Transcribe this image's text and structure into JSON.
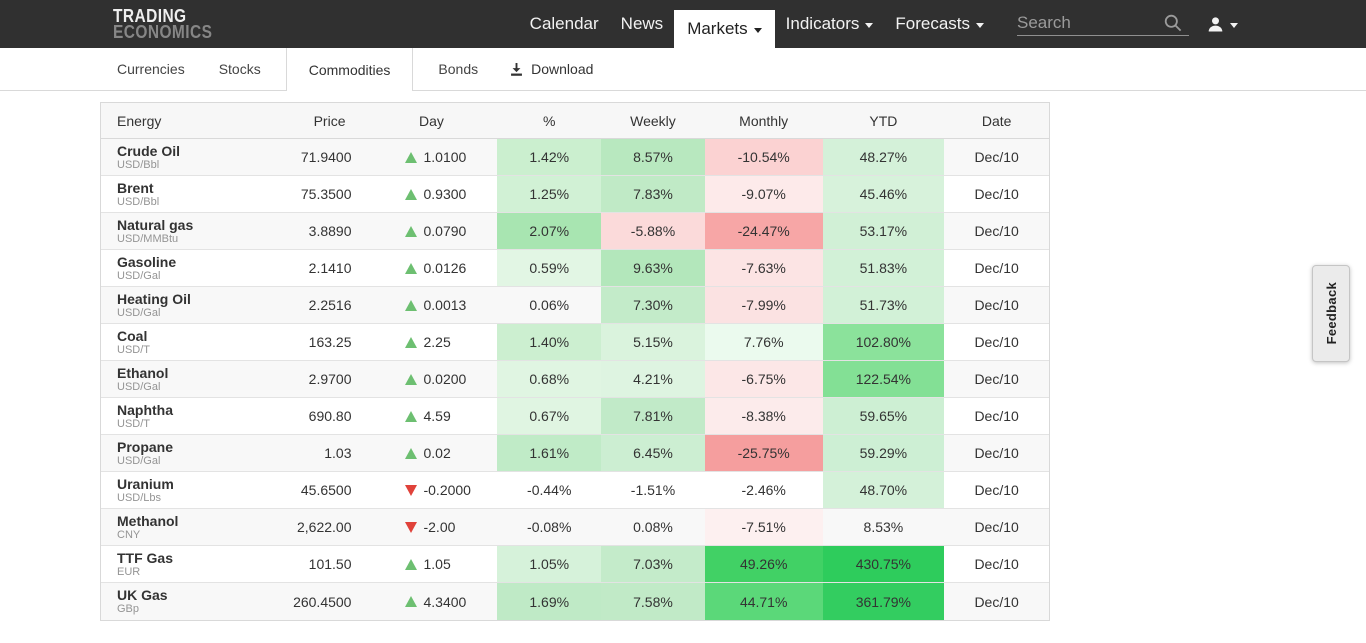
{
  "navbar": {
    "logo_line1": "TRADING",
    "logo_line2": "ECONOMICS",
    "items": [
      {
        "label": "Calendar",
        "active": false,
        "dropdown": false
      },
      {
        "label": "News",
        "active": false,
        "dropdown": false
      },
      {
        "label": "Markets",
        "active": true,
        "dropdown": true
      },
      {
        "label": "Indicators",
        "active": false,
        "dropdown": true
      },
      {
        "label": "Forecasts",
        "active": false,
        "dropdown": true
      }
    ],
    "search_placeholder": "Search"
  },
  "subnav": {
    "tabs": [
      {
        "label": "Currencies",
        "active": false
      },
      {
        "label": "Stocks",
        "active": false
      },
      {
        "label": "Commodities",
        "active": true
      },
      {
        "label": "Bonds",
        "active": false
      }
    ],
    "download_label": "Download"
  },
  "icons": {
    "search": "magnifier",
    "account": "person-silhouette",
    "nav_dropdown": "caret-down",
    "download": "download-arrow-tray",
    "day_up": "triangle-up",
    "day_down": "triangle-down"
  },
  "colors": {
    "navbar_bg": "#303030",
    "up_triangle": "#6dbf71",
    "down_triangle": "#e0423a",
    "positive_light": "#d4f1d9",
    "positive_strong": "#2ecc5c",
    "negative_light": "#fdeaea",
    "negative_strong": "#f59e9e"
  },
  "table": {
    "headers": [
      "Energy",
      "Price",
      "Day",
      "%",
      "Weekly",
      "Monthly",
      "YTD",
      "Date"
    ],
    "rows": [
      {
        "name": "Crude Oil",
        "unit": "USD/Bbl",
        "price": "71.9400",
        "direction": "up",
        "change": "1.0100",
        "pct": "1.42%",
        "pct_bg": "#cbefcf",
        "weekly": "8.57%",
        "weekly_bg": "#b8e8bf",
        "monthly": "-10.54%",
        "monthly_bg": "#fbd2d2",
        "ytd": "48.27%",
        "ytd_bg": "#d4f1d9",
        "date": "Dec/10"
      },
      {
        "name": "Brent",
        "unit": "USD/Bbl",
        "price": "75.3500",
        "direction": "up",
        "change": "0.9300",
        "pct": "1.25%",
        "pct_bg": "#d1f1d5",
        "weekly": "7.83%",
        "weekly_bg": "#c0eac6",
        "monthly": "-9.07%",
        "monthly_bg": "#fdeaea",
        "ytd": "45.46%",
        "ytd_bg": "#d7f2db",
        "date": "Dec/10"
      },
      {
        "name": "Natural gas",
        "unit": "USD/MMBtu",
        "price": "3.8890",
        "direction": "up",
        "change": "0.0790",
        "pct": "2.07%",
        "pct_bg": "#a8e5b1",
        "weekly": "-5.88%",
        "weekly_bg": "#fbdada",
        "monthly": "-24.47%",
        "monthly_bg": "#f7a6a6",
        "ytd": "53.17%",
        "ytd_bg": "#d1f0d6",
        "date": "Dec/10"
      },
      {
        "name": "Gasoline",
        "unit": "USD/Gal",
        "price": "2.1410",
        "direction": "up",
        "change": "0.0126",
        "pct": "0.59%",
        "pct_bg": "#e2f6e4",
        "weekly": "9.63%",
        "weekly_bg": "#b3e7bb",
        "monthly": "-7.63%",
        "monthly_bg": "#fce4e4",
        "ytd": "51.83%",
        "ytd_bg": "#d2f1d7",
        "date": "Dec/10"
      },
      {
        "name": "Heating Oil",
        "unit": "USD/Gal",
        "price": "2.2516",
        "direction": "up",
        "change": "0.0013",
        "pct": "0.06%",
        "pct_bg": "",
        "weekly": "7.30%",
        "weekly_bg": "#c3ebc9",
        "monthly": "-7.99%",
        "monthly_bg": "#fbe2e2",
        "ytd": "51.73%",
        "ytd_bg": "#d2f1d7",
        "date": "Dec/10"
      },
      {
        "name": "Coal",
        "unit": "USD/T",
        "price": "163.25",
        "direction": "up",
        "change": "2.25",
        "pct": "1.40%",
        "pct_bg": "#ccefd0",
        "weekly": "5.15%",
        "weekly_bg": "#daf3dd",
        "monthly": "7.76%",
        "monthly_bg": "#ebfaee",
        "ytd": "102.80%",
        "ytd_bg": "#8be29b",
        "date": "Dec/10"
      },
      {
        "name": "Ethanol",
        "unit": "USD/Gal",
        "price": "2.9700",
        "direction": "up",
        "change": "0.0200",
        "pct": "0.68%",
        "pct_bg": "#e0f5e2",
        "weekly": "4.21%",
        "weekly_bg": "#def4e1",
        "monthly": "-6.75%",
        "monthly_bg": "#fce7e7",
        "ytd": "122.54%",
        "ytd_bg": "#83e095",
        "date": "Dec/10"
      },
      {
        "name": "Naphtha",
        "unit": "USD/T",
        "price": "690.80",
        "direction": "up",
        "change": "4.59",
        "pct": "0.67%",
        "pct_bg": "#e0f5e2",
        "weekly": "7.81%",
        "weekly_bg": "#c1eac8",
        "monthly": "-8.38%",
        "monthly_bg": "#fcebeb",
        "ytd": "59.65%",
        "ytd_bg": "#cdefd3",
        "date": "Dec/10"
      },
      {
        "name": "Propane",
        "unit": "USD/Gal",
        "price": "1.03",
        "direction": "up",
        "change": "0.02",
        "pct": "1.61%",
        "pct_bg": "#c0ebc7",
        "weekly": "6.45%",
        "weekly_bg": "#cceed2",
        "monthly": "-25.75%",
        "monthly_bg": "#f59e9e",
        "ytd": "59.29%",
        "ytd_bg": "#cdefd4",
        "date": "Dec/10"
      },
      {
        "name": "Uranium",
        "unit": "USD/Lbs",
        "price": "45.6500",
        "direction": "down",
        "change": "-0.2000",
        "pct": "-0.44%",
        "pct_bg": "",
        "weekly": "-1.51%",
        "weekly_bg": "",
        "monthly": "-2.46%",
        "monthly_bg": "",
        "ytd": "48.70%",
        "ytd_bg": "#d4f1d9",
        "date": "Dec/10"
      },
      {
        "name": "Methanol",
        "unit": "CNY",
        "price": "2,622.00",
        "direction": "down",
        "change": "-2.00",
        "pct": "-0.08%",
        "pct_bg": "",
        "weekly": "0.08%",
        "weekly_bg": "",
        "monthly": "-7.51%",
        "monthly_bg": "#fdf0f0",
        "ytd": "8.53%",
        "ytd_bg": "",
        "date": "Dec/10"
      },
      {
        "name": "TTF Gas",
        "unit": "EUR",
        "price": "101.50",
        "direction": "up",
        "change": "1.05",
        "pct": "1.05%",
        "pct_bg": "#d6f2da",
        "weekly": "7.03%",
        "weekly_bg": "#c4ebca",
        "monthly": "49.26%",
        "monthly_bg": "#41d165",
        "ytd": "430.75%",
        "ytd_bg": "#2ecc5c",
        "date": "Dec/10"
      },
      {
        "name": "UK Gas",
        "unit": "GBp",
        "price": "260.4500",
        "direction": "up",
        "change": "4.3400",
        "pct": "1.69%",
        "pct_bg": "#bfeac6",
        "weekly": "7.58%",
        "weekly_bg": "#c1eac7",
        "monthly": "44.71%",
        "monthly_bg": "#5bd879",
        "ytd": "361.79%",
        "ytd_bg": "#33cd60",
        "date": "Dec/10"
      }
    ]
  },
  "feedback_label": "Feedback"
}
